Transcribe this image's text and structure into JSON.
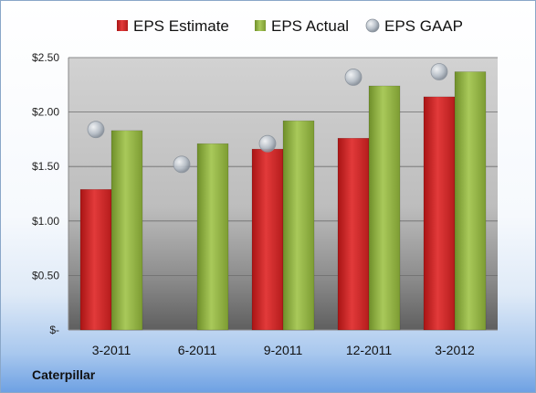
{
  "company_label": "Caterpillar",
  "chart_data": {
    "type": "bar",
    "categories": [
      "3-2011",
      "6-2011",
      "9-2011",
      "12-2011",
      "3-2012"
    ],
    "series": [
      {
        "name": "EPS Estimate",
        "kind": "bar",
        "color": "#cc2222",
        "values": [
          1.29,
          null,
          1.66,
          1.76,
          2.14
        ]
      },
      {
        "name": "EPS Actual",
        "kind": "bar",
        "color": "#8fb13e",
        "values": [
          1.83,
          1.71,
          1.92,
          2.24,
          2.37
        ]
      },
      {
        "name": "EPS GAAP",
        "kind": "marker",
        "color": "#aab4bf",
        "values": [
          1.84,
          1.52,
          1.71,
          2.32,
          2.37
        ]
      }
    ],
    "yticks": [
      "$-",
      "$0.50",
      "$1.00",
      "$1.50",
      "$2.00",
      "$2.50"
    ],
    "ylim": [
      0,
      2.5
    ],
    "grid": true,
    "legend_position": "top"
  }
}
